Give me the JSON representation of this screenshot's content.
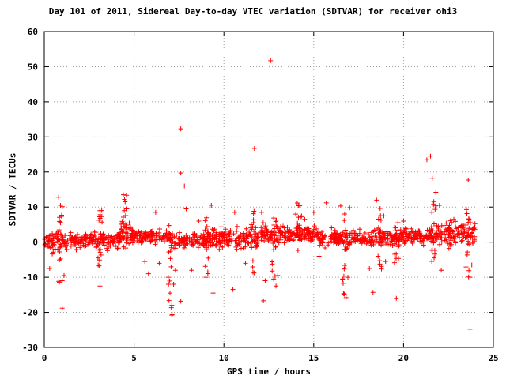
{
  "chart_data": {
    "type": "scatter",
    "title": "Day 101 of 2011, Sidereal Day-to-day VTEC variation (SDTVAR) for receiver ohi3",
    "xlabel": "GPS time / hours",
    "ylabel": "SDTVAR / TECUs",
    "xlim": [
      0,
      25
    ],
    "ylim": [
      -30,
      60
    ],
    "xticks": [
      0,
      5,
      10,
      15,
      20,
      25
    ],
    "yticks": [
      -30,
      -20,
      -10,
      0,
      10,
      20,
      30,
      40,
      50,
      60
    ],
    "grid": true,
    "marker": "+",
    "colors": {
      "points": "#ff0000",
      "grid": "#a0a0a0",
      "axes": "#000000"
    },
    "bands": [
      {
        "x": [
          0.0,
          1.2
        ],
        "center": 0.0,
        "half_width": 3.2
      },
      {
        "x": [
          1.2,
          4.2
        ],
        "center": 0.5,
        "half_width": 2.8
      },
      {
        "x": [
          4.2,
          4.8
        ],
        "center": 3.0,
        "half_width": 4.5
      },
      {
        "x": [
          4.8,
          7.0
        ],
        "center": 1.5,
        "half_width": 2.2
      },
      {
        "x": [
          7.0,
          9.0
        ],
        "center": 0.5,
        "half_width": 2.5
      },
      {
        "x": [
          9.0,
          12.0
        ],
        "center": 1.0,
        "half_width": 3.5
      },
      {
        "x": [
          12.0,
          15.2
        ],
        "center": 2.5,
        "half_width": 2.8
      },
      {
        "x": [
          15.2,
          19.8
        ],
        "center": 1.0,
        "half_width": 3.0
      },
      {
        "x": [
          19.8,
          21.5
        ],
        "center": 1.5,
        "half_width": 2.5
      },
      {
        "x": [
          21.5,
          24.0
        ],
        "center": 2.5,
        "half_width": 4.0
      }
    ],
    "outliers": [
      [
        0.3,
        -7.5
      ],
      [
        0.8,
        12.8
      ],
      [
        0.9,
        10.5
      ],
      [
        1.0,
        -11.0
      ],
      [
        1.0,
        -18.8
      ],
      [
        0.9,
        5.5
      ],
      [
        1.1,
        -9.5
      ],
      [
        3.1,
        -12.5
      ],
      [
        3.2,
        9.0
      ],
      [
        3.0,
        -6.5
      ],
      [
        4.4,
        13.5
      ],
      [
        4.5,
        11.5
      ],
      [
        4.6,
        9.5
      ],
      [
        5.6,
        -5.5
      ],
      [
        5.8,
        -9.0
      ],
      [
        6.2,
        8.5
      ],
      [
        6.4,
        -6.0
      ],
      [
        6.9,
        -10.0
      ],
      [
        7.0,
        -14.5
      ],
      [
        7.1,
        -18.0
      ],
      [
        7.1,
        -20.8
      ],
      [
        7.2,
        -12.0
      ],
      [
        7.3,
        -8.0
      ],
      [
        7.6,
        32.3
      ],
      [
        7.6,
        19.7
      ],
      [
        7.8,
        16.0
      ],
      [
        7.6,
        -16.8
      ],
      [
        7.9,
        9.5
      ],
      [
        8.2,
        -8.0
      ],
      [
        8.6,
        6.0
      ],
      [
        9.0,
        -10.0
      ],
      [
        9.3,
        10.5
      ],
      [
        9.4,
        -14.5
      ],
      [
        10.5,
        -13.5
      ],
      [
        10.6,
        8.5
      ],
      [
        11.2,
        -6.0
      ],
      [
        11.7,
        26.7
      ],
      [
        12.1,
        8.5
      ],
      [
        12.2,
        -16.7
      ],
      [
        12.3,
        -11.0
      ],
      [
        12.6,
        51.7
      ],
      [
        12.9,
        -12.5
      ],
      [
        13.0,
        -9.5
      ],
      [
        14.0,
        8.0
      ],
      [
        14.5,
        6.5
      ],
      [
        15.0,
        8.5
      ],
      [
        15.3,
        -4.0
      ],
      [
        15.7,
        11.2
      ],
      [
        16.5,
        10.3
      ],
      [
        16.6,
        -10.5
      ],
      [
        16.7,
        -14.8
      ],
      [
        16.8,
        -15.8
      ],
      [
        16.9,
        -10.0
      ],
      [
        17.0,
        9.8
      ],
      [
        18.1,
        -7.5
      ],
      [
        18.3,
        -14.3
      ],
      [
        18.5,
        12.0
      ],
      [
        18.9,
        7.5
      ],
      [
        19.0,
        -5.5
      ],
      [
        19.6,
        -16.0
      ],
      [
        20.0,
        6.0
      ],
      [
        21.3,
        23.5
      ],
      [
        21.5,
        24.5
      ],
      [
        21.6,
        18.2
      ],
      [
        21.8,
        14.2
      ],
      [
        22.0,
        10.5
      ],
      [
        21.7,
        -4.5
      ],
      [
        22.1,
        -8.0
      ],
      [
        22.8,
        6.5
      ],
      [
        23.5,
        9.3
      ],
      [
        23.6,
        17.7
      ],
      [
        23.8,
        -6.5
      ],
      [
        23.7,
        -10.0
      ],
      [
        23.7,
        -24.8
      ]
    ],
    "spikes": [
      {
        "x": 0.9,
        "y": [
          -12,
          13
        ]
      },
      {
        "x": 3.1,
        "y": [
          -8,
          9
        ]
      },
      {
        "x": 4.5,
        "y": [
          -2,
          14
        ]
      },
      {
        "x": 7.0,
        "y": [
          -21,
          6
        ]
      },
      {
        "x": 9.0,
        "y": [
          -10,
          8
        ]
      },
      {
        "x": 11.6,
        "y": [
          -9,
          9
        ]
      },
      {
        "x": 12.8,
        "y": [
          -12,
          8
        ]
      },
      {
        "x": 14.2,
        "y": [
          -3,
          13
        ]
      },
      {
        "x": 16.7,
        "y": [
          -16,
          10
        ]
      },
      {
        "x": 18.7,
        "y": [
          -8,
          10
        ]
      },
      {
        "x": 19.6,
        "y": [
          -7,
          6
        ]
      },
      {
        "x": 21.7,
        "y": [
          -6,
          14
        ]
      },
      {
        "x": 23.6,
        "y": [
          -10,
          9
        ]
      }
    ]
  }
}
